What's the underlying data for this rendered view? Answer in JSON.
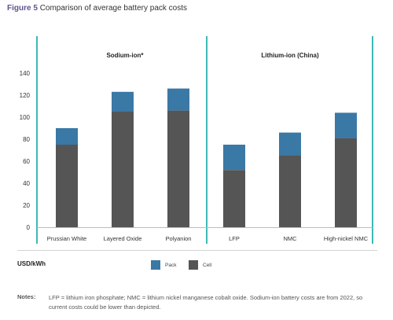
{
  "figure": {
    "number": "Figure 5",
    "title": "Comparison of average battery pack costs"
  },
  "unit_label": "USD/kWh",
  "legend": [
    {
      "name": "Pack",
      "color": "#3a78a6"
    },
    {
      "name": "Cell",
      "color": "#555555"
    }
  ],
  "notes": {
    "heading": "Notes:",
    "text": "LFP = lithium iron phosphate; NMC = lithium nickel manganese cobalt oxide. Sodium-ion battery costs are from 2022, so current costs could be lower than depicted."
  },
  "colors": {
    "pack": "#3a78a6",
    "cell": "#555555",
    "divider": "#3fb8b4",
    "title_accent": "#5c5391"
  },
  "chart_data": {
    "type": "bar",
    "stacked": true,
    "ylim": [
      0,
      140
    ],
    "yticks": [
      0,
      20,
      40,
      60,
      80,
      100,
      120,
      140
    ],
    "ylabel": "USD/kWh",
    "grid": false,
    "legend_position": "bottom",
    "groups": [
      {
        "label": "Sodium-ion*",
        "categories": [
          "Prussian White",
          "Layered Oxide",
          "Polyanion"
        ]
      },
      {
        "label": "Lithium-ion (China)",
        "categories": [
          "LFP",
          "NMC",
          "High-nickel NMC"
        ]
      }
    ],
    "categories": [
      "Prussian White",
      "Layered Oxide",
      "Polyanion",
      "LFP",
      "NMC",
      "High-nickel NMC"
    ],
    "series": [
      {
        "name": "Cell",
        "values": [
          75,
          105,
          106,
          52,
          65,
          81
        ]
      },
      {
        "name": "Pack",
        "values": [
          15,
          18,
          20,
          23,
          21,
          23
        ]
      }
    ]
  }
}
